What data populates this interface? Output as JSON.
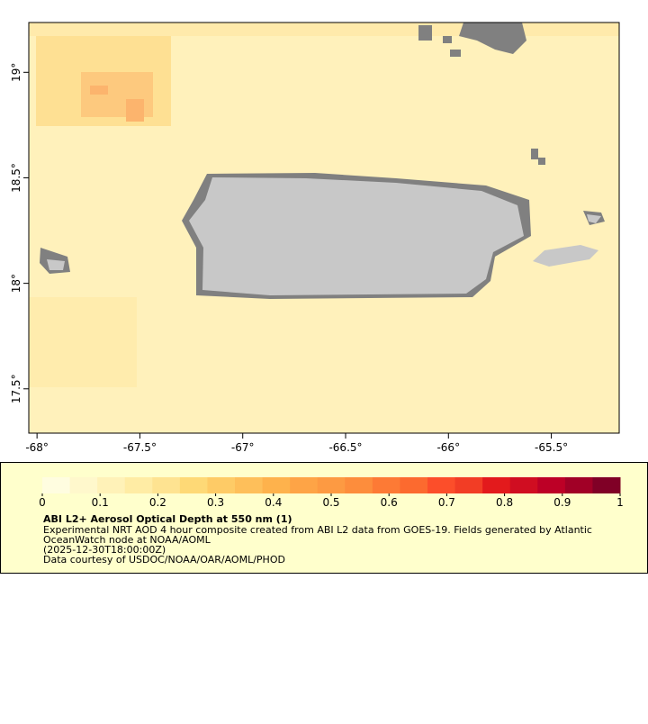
{
  "map": {
    "xlim": [
      -68.04,
      -65.17
    ],
    "ylim": [
      17.29,
      19.236
    ],
    "xticks": [
      {
        "value": -68,
        "label": "-68°"
      },
      {
        "value": -67.5,
        "label": "-67.5°"
      },
      {
        "value": -67,
        "label": "-67°"
      },
      {
        "value": -66.5,
        "label": "-66.5°"
      },
      {
        "value": -66,
        "label": "-66°"
      },
      {
        "value": -65.5,
        "label": "-65.5°"
      }
    ],
    "yticks": [
      {
        "value": 17.5,
        "label": "17.5°"
      },
      {
        "value": 18,
        "label": "18°"
      },
      {
        "value": 18.5,
        "label": "18.5°"
      },
      {
        "value": 19,
        "label": "19°"
      }
    ]
  },
  "colorbar": {
    "lim": [
      0,
      1
    ],
    "ticks": [
      0,
      0.1,
      0.2,
      0.3,
      0.4,
      0.5,
      0.6,
      0.7,
      0.8,
      0.9,
      1
    ],
    "colors": [
      "#fffde0",
      "#fff8cc",
      "#fff2b8",
      "#ffeca4",
      "#fee391",
      "#fed976",
      "#fecb66",
      "#febf5a",
      "#feb24c",
      "#fea446",
      "#fd9a42",
      "#fd8d3c",
      "#fd7a35",
      "#fc6a2f",
      "#fc4e2a",
      "#f23d25",
      "#e31a1c",
      "#d00d21",
      "#bd0026",
      "#a10026",
      "#800026"
    ]
  },
  "caption": {
    "title": "ABI L2+ Aerosol Optical Depth at 550 nm (1)",
    "lines": [
      "Experimental NRT AOD 4 hour composite created from ABI L2 data from GOES-19. Fields generated by Atlantic",
      "OceanWatch node at NOAA/AOML",
      "(2025-12-30T18:00:00Z)",
      "Data courtesy of USDOC/NOAA/OAR/AOML/PHOD"
    ]
  }
}
